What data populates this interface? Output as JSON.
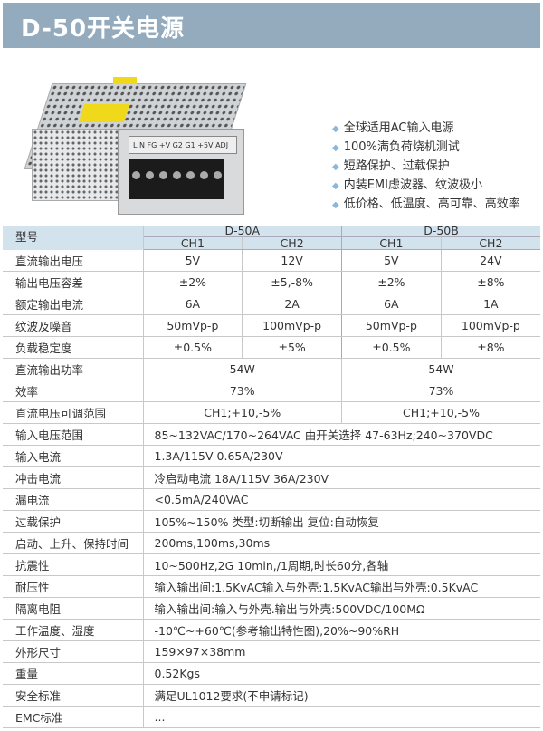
{
  "title": "D-50开关电源",
  "product_image": {
    "terminal_labels": "L N FG +V G2 G1 +5V ADJ"
  },
  "features": [
    "全球适用AC输入电源",
    "100%满负荷烧机测试",
    "短路保护、过载保护",
    "内装EMI虑波器、纹波极小",
    "低价格、低温度、高可靠、高效率"
  ],
  "table": {
    "model_label": "型号",
    "models": [
      "D-50A",
      "D-50B"
    ],
    "channels": [
      "CH1",
      "CH2",
      "CH1",
      "CH2"
    ],
    "channel_rows": [
      {
        "label": "直流输出电压",
        "values": [
          "5V",
          "12V",
          "5V",
          "24V"
        ]
      },
      {
        "label": "输出电压容差",
        "values": [
          "±2%",
          "±5,-8%",
          "±2%",
          "±8%"
        ]
      },
      {
        "label": "额定输出电流",
        "values": [
          "6A",
          "2A",
          "6A",
          "1A"
        ]
      },
      {
        "label": "纹波及噪音",
        "values": [
          "50mVp-p",
          "100mVp-p",
          "50mVp-p",
          "100mVp-p"
        ]
      },
      {
        "label": "负载稳定度",
        "values": [
          "±0.5%",
          "±5%",
          "±0.5%",
          "±8%"
        ]
      }
    ],
    "model_rows": [
      {
        "label": "直流输出功率",
        "values": [
          "54W",
          "54W"
        ]
      },
      {
        "label": "效率",
        "values": [
          "73%",
          "73%"
        ]
      },
      {
        "label": "直流电压可调范围",
        "values": [
          "CH1;+10,-5%",
          "CH1;+10,-5%"
        ]
      }
    ],
    "common_rows": [
      {
        "label": "输入电压范围",
        "value": "85~132VAC/170~264VAC 由开关选择 47-63Hz;240~370VDC"
      },
      {
        "label": "输入电流",
        "value": "1.3A/115V 0.65A/230V"
      },
      {
        "label": "冲击电流",
        "value": "冷启动电流 18A/115V 36A/230V"
      },
      {
        "label": "漏电流",
        "value": "<0.5mA/240VAC"
      },
      {
        "label": "过载保护",
        "value": "105%~150% 类型:切断输出  复位:自动恢复"
      },
      {
        "label": "启动、上升、保持时间",
        "value": "200ms,100ms,30ms"
      },
      {
        "label": "抗震性",
        "value": "10~500Hz,2G 10min,/1周期,时长60分,各轴"
      },
      {
        "label": "耐压性",
        "value": "输入输出间:1.5KvAC输入与外壳:1.5KvAC输出与外壳:0.5KvAC"
      },
      {
        "label": "隔离电阻",
        "value": "输入输出间:输入与外壳.输出与外壳:500VDC/100MΩ"
      },
      {
        "label": "工作温度、湿度",
        "value": "-10℃~+60℃(参考输出特性图),20%~90%RH"
      },
      {
        "label": "外形尺寸",
        "value": "159×97×38mm"
      },
      {
        "label": "重量",
        "value": "0.52Kgs"
      },
      {
        "label": "安全标准",
        "value": "满足UL1012要求(不申请标记)"
      },
      {
        "label": "EMC标准",
        "value": "..."
      }
    ]
  },
  "colors": {
    "title_bar": "#93abbd",
    "header_bg": "#d3e3ee",
    "bullet": "#8bb7dc"
  }
}
